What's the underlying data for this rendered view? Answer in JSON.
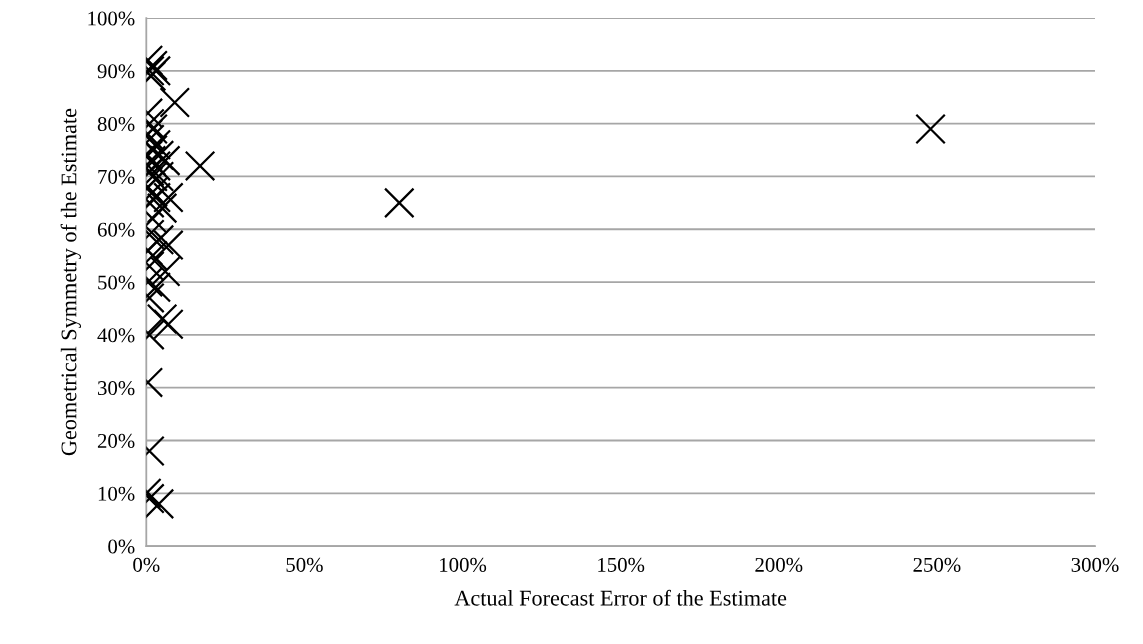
{
  "chart_data": {
    "type": "scatter",
    "xlabel": "Actual Forecast Error of the Estimate",
    "ylabel": "Geometrical Symmetry of the Estimate",
    "x": [
      0.5,
      1,
      2,
      3,
      1.5,
      0.5,
      1,
      0.5,
      2,
      1,
      3,
      2,
      0.5,
      4,
      1.5,
      3,
      6,
      1,
      2,
      4,
      0.5,
      2,
      3,
      7,
      1,
      5,
      2,
      1,
      4,
      7,
      0.5,
      2,
      1,
      6,
      0.5,
      3,
      1,
      5,
      7,
      1,
      0.5,
      1,
      0,
      1,
      4,
      9,
      17,
      80,
      248
    ],
    "series": [
      {
        "color": "#000000",
        "values": [
          92,
          90,
          91,
          90,
          89,
          82,
          80,
          78,
          79,
          77,
          76,
          75,
          74,
          74,
          73,
          72,
          73,
          71,
          70,
          70,
          68,
          67,
          66,
          66,
          65,
          64,
          62,
          59,
          58,
          57,
          56,
          55,
          53,
          52,
          50,
          49,
          47,
          43,
          42,
          40,
          31,
          18,
          10,
          9,
          8,
          84,
          72,
          65,
          79
        ]
      }
    ],
    "marker": "cross",
    "grid": "y",
    "xlim": [
      0,
      300
    ],
    "xticks": [
      {
        "value": 0,
        "label": "0%"
      },
      {
        "value": 50,
        "label": "50%"
      },
      {
        "value": 100,
        "label": "100%"
      },
      {
        "value": 150,
        "label": "150%"
      },
      {
        "value": 200,
        "label": "200%"
      },
      {
        "value": 250,
        "label": "250%"
      },
      {
        "value": 300,
        "label": "300%"
      }
    ],
    "ylim": [
      0,
      100
    ],
    "yticks": [
      {
        "value": 0,
        "label": "0%"
      },
      {
        "value": 10,
        "label": "10%"
      },
      {
        "value": 20,
        "label": "20%"
      },
      {
        "value": 30,
        "label": "30%"
      },
      {
        "value": 40,
        "label": "40%"
      },
      {
        "value": 50,
        "label": "50%"
      },
      {
        "value": 60,
        "label": "60%"
      },
      {
        "value": 70,
        "label": "70%"
      },
      {
        "value": 80,
        "label": "80%"
      },
      {
        "value": 90,
        "label": "90%"
      },
      {
        "value": 100,
        "label": "100%"
      }
    ]
  }
}
